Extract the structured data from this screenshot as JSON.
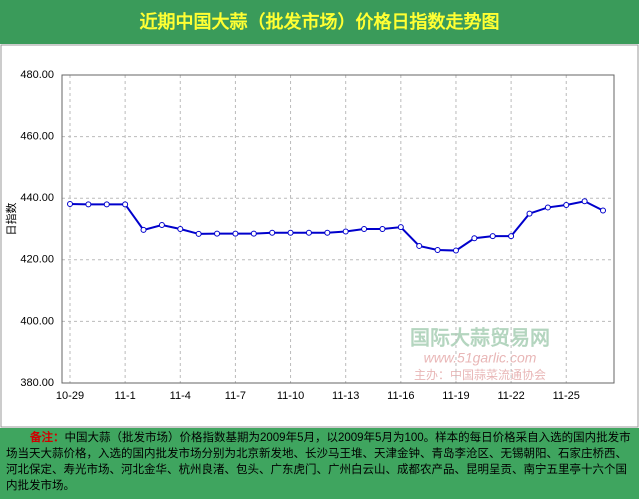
{
  "chart_data": {
    "type": "line",
    "title": "近期中国大蒜（批发市场）价格日指数走势图",
    "ylabel": "日指数",
    "categories": [
      "10-29",
      null,
      null,
      "11-1",
      null,
      null,
      "11-4",
      null,
      null,
      "11-7",
      null,
      null,
      "11-10",
      null,
      null,
      "11-13",
      null,
      null,
      "11-16",
      null,
      null,
      "11-19",
      null,
      null,
      "11-22",
      null,
      null,
      "11-25",
      null,
      null
    ],
    "series": [
      {
        "name": "日指数",
        "color": "#0000cc",
        "values": [
          438.1,
          438,
          438,
          438,
          429.7,
          431.3,
          430,
          428.4,
          428.5,
          428.5,
          428.5,
          428.8,
          428.8,
          428.8,
          428.8,
          429.2,
          430,
          430,
          430.6,
          424.5,
          423.2,
          423,
          427,
          427.7,
          427.7,
          435,
          437,
          437.8,
          439,
          436
        ]
      }
    ],
    "ylim": [
      380,
      480
    ],
    "yticks": [
      {
        "value": 380,
        "label": "380.00"
      },
      {
        "value": 400,
        "label": "400.00"
      },
      {
        "value": 420,
        "label": "420.00"
      },
      {
        "value": 440,
        "label": "440.00"
      },
      {
        "value": 460,
        "label": "460.00"
      },
      {
        "value": 480,
        "label": "480.00"
      }
    ],
    "grid": true,
    "watermark": {
      "name": "国际大蒜贸易网",
      "url": "www.51garlic.com",
      "host": "主办：中国蒜菜流通协会"
    },
    "note": {
      "label": "备注：",
      "text": "中国大蒜（批发市场）价格指数基期为2009年5月，以2009年5月为100。样本的每日价格采自入选的国内批发市场当天大蒜价格，入选的国内批发市场分别为北京新发地、长沙马王堆、天津金钟、青岛李沧区、无锡朝阳、石家庄桥西、河北保定、寿光市场、河北金华、杭州良渚、包头、广东虎门、广州白云山、成都农产品、昆明呈贡、南宁五里亭十六个国内批发市场。"
    }
  }
}
